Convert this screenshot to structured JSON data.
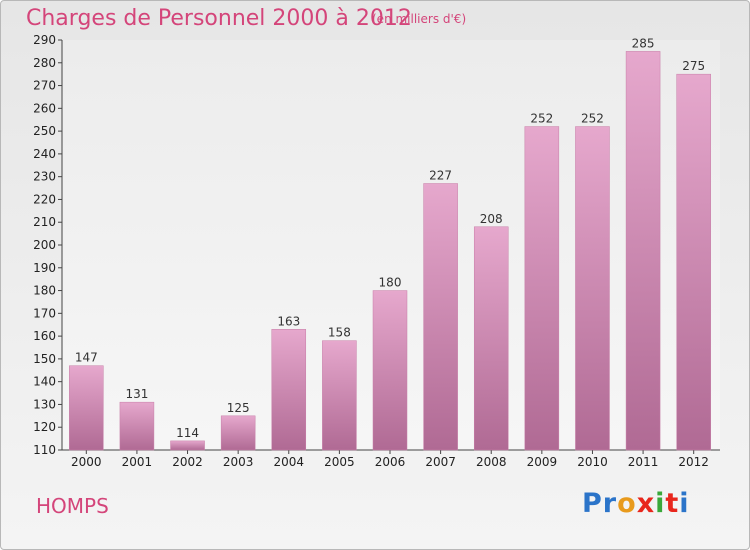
{
  "header": {
    "title": "Charges de Personnel 2000 à 2012",
    "subtitle": "(en milliers d'€)"
  },
  "footer": {
    "city": "HOMPS",
    "logo_letters": [
      {
        "ch": "P",
        "color": "#2b74c9"
      },
      {
        "ch": "r",
        "color": "#2b74c9"
      },
      {
        "ch": "o",
        "color": "#e89a1c"
      },
      {
        "ch": "x",
        "color": "#e8261c"
      },
      {
        "ch": "i",
        "color": "#3aa83a"
      },
      {
        "ch": "t",
        "color": "#e8261c"
      },
      {
        "ch": "i",
        "color": "#2b74c9"
      }
    ]
  },
  "chart_data": {
    "type": "bar",
    "title": "Charges de Personnel 2000 à 2012",
    "subtitle": "(en milliers d'€)",
    "categories": [
      "2000",
      "2001",
      "2002",
      "2003",
      "2004",
      "2005",
      "2006",
      "2007",
      "2008",
      "2009",
      "2010",
      "2011",
      "2012"
    ],
    "values": [
      147,
      131,
      114,
      125,
      163,
      158,
      180,
      227,
      208,
      252,
      252,
      285,
      275
    ],
    "ylim": [
      110,
      290
    ],
    "ytick_step": 10,
    "grid": false,
    "bar_color": "#d88db4"
  }
}
